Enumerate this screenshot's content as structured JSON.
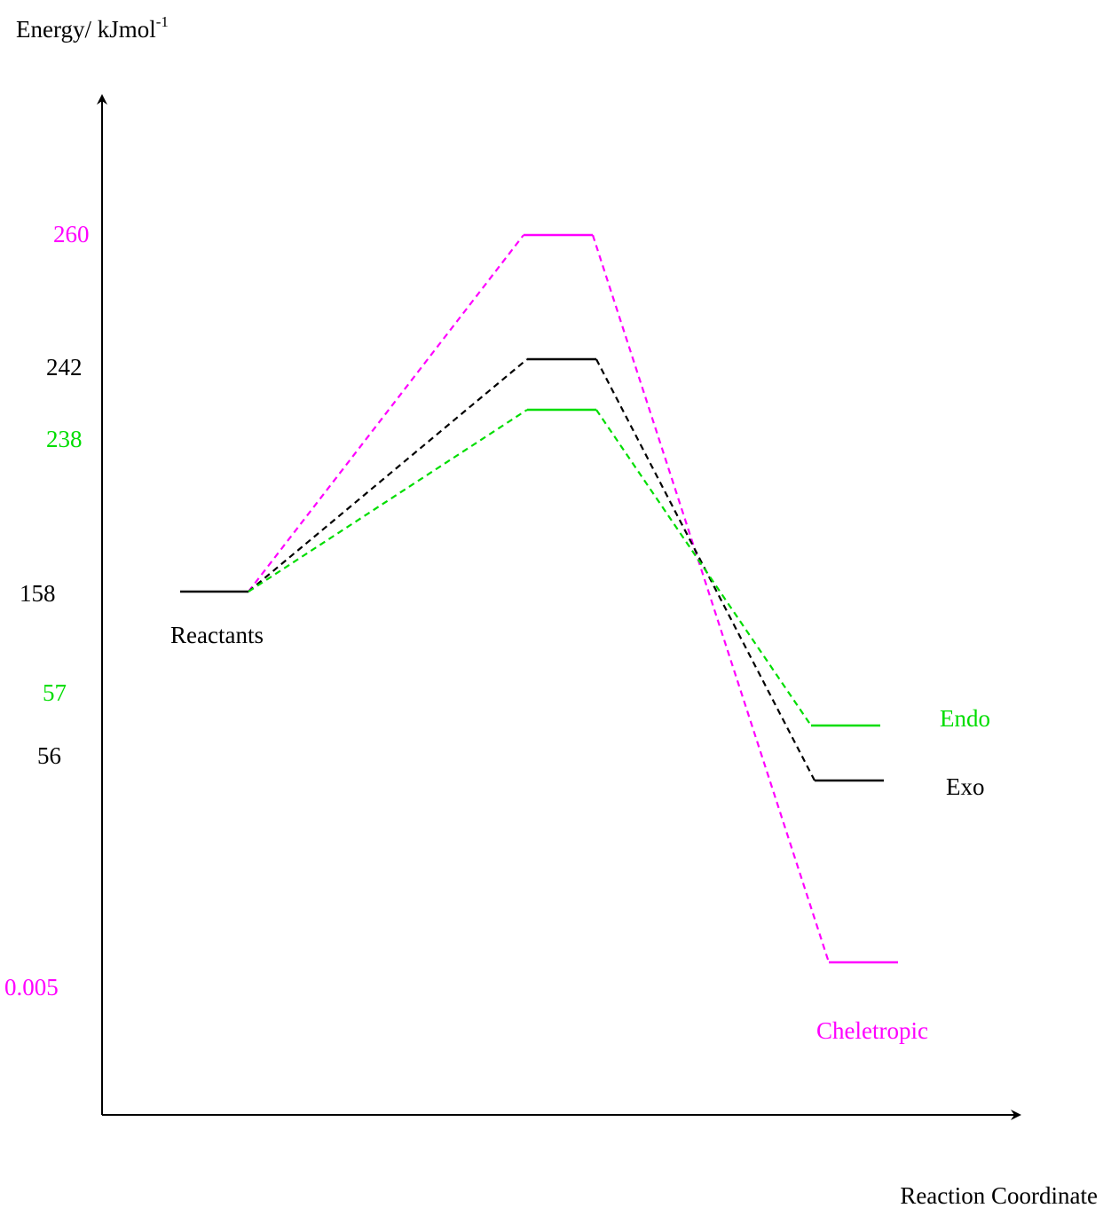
{
  "chart_data": {
    "type": "line",
    "title": "",
    "ylabel": "Energy/ kJmol",
    "ylabel_superscript": "-1",
    "xlabel": "Reaction Coordinate",
    "start": {
      "label": "Reactants",
      "value": 158,
      "value_label": "158",
      "color": "#000000"
    },
    "series": [
      {
        "name": "Cheletropic",
        "ts_value": 260,
        "ts_label": "260",
        "product_value": 0.005,
        "product_label": "0.005",
        "color": "#ff00ff"
      },
      {
        "name": "Exo",
        "ts_value": 242,
        "ts_label": "242",
        "product_value": 56,
        "product_label": "56",
        "color": "#000000"
      },
      {
        "name": "Endo",
        "ts_value": 238,
        "ts_label": "238",
        "product_value": 57,
        "product_label": "57",
        "color": "#00dd00"
      }
    ]
  }
}
